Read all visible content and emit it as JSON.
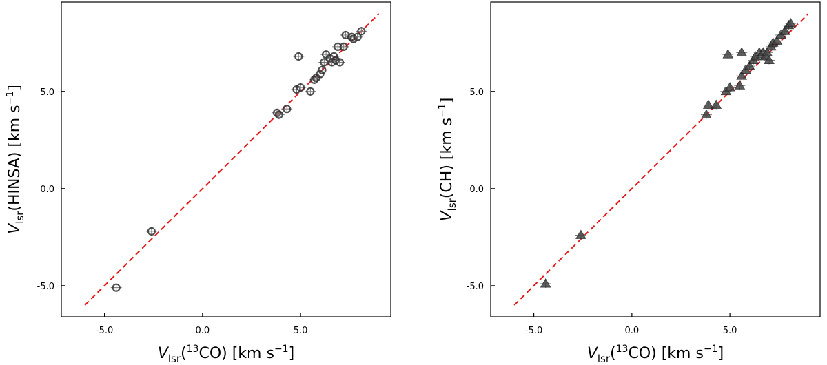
{
  "chart_data": [
    {
      "type": "scatter",
      "marker": "circle",
      "xlabel": {
        "italic": "V",
        "sub": "lsr",
        "rest_pre": "(",
        "sup": "13",
        "rest_post": "CO) [km s",
        "unit_sup": "−1",
        "close": "]"
      },
      "ylabel": {
        "italic": "V",
        "sub": "lsr",
        "rest_pre": "(HINSA) [km s",
        "unit_sup": "−1",
        "close": "]"
      },
      "xticks": [
        {
          "value": -5,
          "label": "-5.0"
        },
        {
          "value": 0,
          "label": "0.0"
        },
        {
          "value": 5,
          "label": "5.0"
        }
      ],
      "yticks": [
        {
          "value": -5,
          "label": "-5.0"
        },
        {
          "value": 0,
          "label": "0.0"
        },
        {
          "value": 5,
          "label": "5.0"
        }
      ],
      "xlim": [
        -7.2,
        9.6
      ],
      "ylim": [
        -6.6,
        9.6
      ],
      "reference_line": {
        "x": [
          -6,
          9
        ],
        "y": [
          -6,
          9
        ],
        "color": "#e31a1c",
        "style": "dashed"
      },
      "points": [
        {
          "x": -4.4,
          "y": -5.1
        },
        {
          "x": -2.6,
          "y": -2.2
        },
        {
          "x": 3.8,
          "y": 3.9
        },
        {
          "x": 3.9,
          "y": 3.8
        },
        {
          "x": 4.3,
          "y": 4.1
        },
        {
          "x": 4.8,
          "y": 5.1
        },
        {
          "x": 5.0,
          "y": 5.2
        },
        {
          "x": 4.9,
          "y": 6.8
        },
        {
          "x": 5.5,
          "y": 5.0
        },
        {
          "x": 5.7,
          "y": 5.6
        },
        {
          "x": 5.8,
          "y": 5.7
        },
        {
          "x": 6.0,
          "y": 5.9
        },
        {
          "x": 6.1,
          "y": 6.1
        },
        {
          "x": 6.2,
          "y": 6.5
        },
        {
          "x": 6.3,
          "y": 6.9
        },
        {
          "x": 6.5,
          "y": 6.7
        },
        {
          "x": 6.6,
          "y": 6.5
        },
        {
          "x": 6.7,
          "y": 6.8
        },
        {
          "x": 6.8,
          "y": 6.6
        },
        {
          "x": 6.9,
          "y": 7.3
        },
        {
          "x": 7.0,
          "y": 6.5
        },
        {
          "x": 7.2,
          "y": 7.3
        },
        {
          "x": 7.3,
          "y": 7.9
        },
        {
          "x": 7.6,
          "y": 7.8
        },
        {
          "x": 7.7,
          "y": 7.7
        },
        {
          "x": 7.9,
          "y": 7.8
        },
        {
          "x": 8.1,
          "y": 8.1
        }
      ]
    },
    {
      "type": "scatter",
      "marker": "triangle",
      "xlabel": {
        "italic": "V",
        "sub": "lsr",
        "rest_pre": "(",
        "sup": "13",
        "rest_post": "CO) [km s",
        "unit_sup": "−1",
        "close": "]"
      },
      "ylabel": {
        "italic": "V",
        "sub": "lsr",
        "rest_pre": "(CH) [km s",
        "unit_sup": "−1",
        "close": "]"
      },
      "xticks": [
        {
          "value": -5,
          "label": "-5.0"
        },
        {
          "value": 0,
          "label": "0.0"
        },
        {
          "value": 5,
          "label": "5.0"
        }
      ],
      "yticks": [
        {
          "value": -5,
          "label": "-5.0"
        },
        {
          "value": 0,
          "label": "0.0"
        },
        {
          "value": 5,
          "label": "5.0"
        }
      ],
      "xlim": [
        -7.2,
        9.6
      ],
      "ylim": [
        -6.6,
        9.6
      ],
      "reference_line": {
        "x": [
          -6,
          9
        ],
        "y": [
          -6,
          9
        ],
        "color": "#e31a1c",
        "style": "dashed"
      },
      "points": [
        {
          "x": -4.4,
          "y": -4.9
        },
        {
          "x": -2.6,
          "y": -2.4
        },
        {
          "x": 3.8,
          "y": 3.8
        },
        {
          "x": 3.9,
          "y": 4.3
        },
        {
          "x": 4.3,
          "y": 4.3
        },
        {
          "x": 4.8,
          "y": 5.0
        },
        {
          "x": 5.0,
          "y": 5.2
        },
        {
          "x": 4.9,
          "y": 6.9
        },
        {
          "x": 5.5,
          "y": 5.3
        },
        {
          "x": 5.6,
          "y": 5.8
        },
        {
          "x": 5.6,
          "y": 7.0
        },
        {
          "x": 5.8,
          "y": 6.1
        },
        {
          "x": 6.0,
          "y": 6.3
        },
        {
          "x": 6.2,
          "y": 6.6
        },
        {
          "x": 6.3,
          "y": 6.8
        },
        {
          "x": 6.5,
          "y": 7.0
        },
        {
          "x": 6.6,
          "y": 6.9
        },
        {
          "x": 6.7,
          "y": 7.0
        },
        {
          "x": 6.8,
          "y": 6.8
        },
        {
          "x": 7.0,
          "y": 6.6
        },
        {
          "x": 7.1,
          "y": 7.3
        },
        {
          "x": 7.2,
          "y": 7.5
        },
        {
          "x": 7.4,
          "y": 7.6
        },
        {
          "x": 7.6,
          "y": 7.9
        },
        {
          "x": 7.8,
          "y": 8.1
        },
        {
          "x": 8.0,
          "y": 8.4
        },
        {
          "x": 8.1,
          "y": 8.5
        },
        {
          "x": 6.9,
          "y": 7.0
        }
      ]
    }
  ]
}
